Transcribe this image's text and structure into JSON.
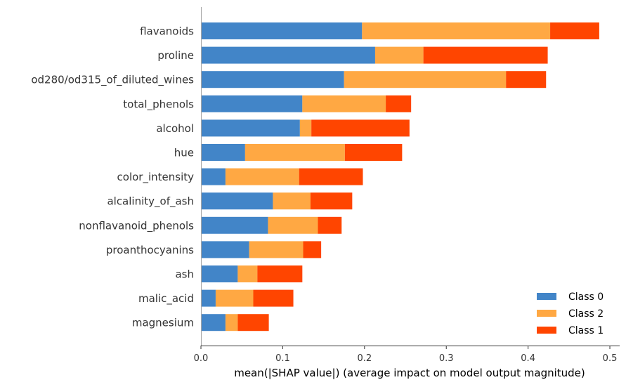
{
  "chart_data": {
    "type": "bar",
    "orientation": "horizontal",
    "stacked": true,
    "xlabel": "mean(|SHAP value|) (average impact on model output magnitude)",
    "xlim": [
      0,
      0.512
    ],
    "xticks": [
      0.0,
      0.1,
      0.2,
      0.3,
      0.4,
      0.5
    ],
    "xtick_labels": [
      "0.0",
      "0.1",
      "0.2",
      "0.3",
      "0.4",
      "0.5"
    ],
    "grid": false,
    "legend_position": "bottom-right",
    "categories": [
      "flavanoids",
      "proline",
      "od280/od315_of_diluted_wines",
      "total_phenols",
      "alcohol",
      "hue",
      "color_intensity",
      "alcalinity_of_ash",
      "nonflavanoid_phenols",
      "proanthocyanins",
      "ash",
      "malic_acid",
      "magnesium"
    ],
    "series": [
      {
        "name": "Class 0",
        "color": "#4285c8",
        "values": [
          0.197,
          0.213,
          0.175,
          0.124,
          0.121,
          0.054,
          0.03,
          0.088,
          0.082,
          0.059,
          0.045,
          0.018,
          0.03
        ]
      },
      {
        "name": "Class 2",
        "color": "#ffa843",
        "values": [
          0.23,
          0.059,
          0.198,
          0.102,
          0.014,
          0.122,
          0.09,
          0.046,
          0.061,
          0.066,
          0.024,
          0.046,
          0.015
        ]
      },
      {
        "name": "Class 1",
        "color": "#ff4500",
        "values": [
          0.06,
          0.152,
          0.049,
          0.031,
          0.12,
          0.07,
          0.078,
          0.051,
          0.029,
          0.022,
          0.055,
          0.049,
          0.038
        ]
      }
    ]
  }
}
